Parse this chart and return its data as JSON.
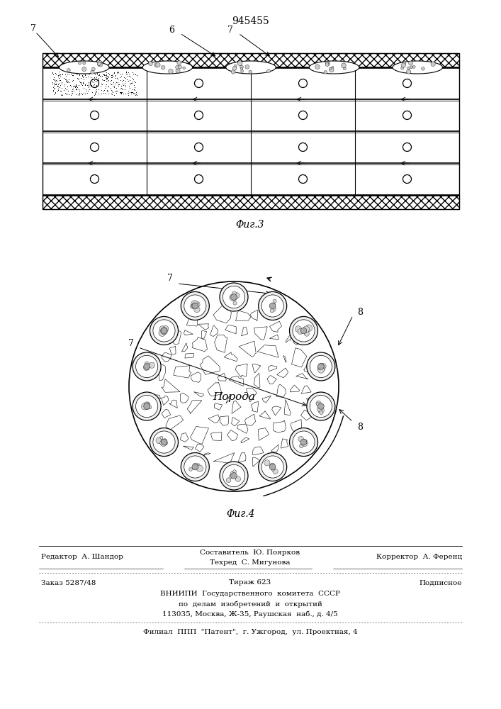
{
  "patent_number": "945455",
  "fig3_label": "Φиг.3",
  "fig4_label": "Φиг.4",
  "poroda_text": "Порода",
  "footer_line1_left": "Редактор  А. Шандор",
  "footer_line1_center": "Составитель  Ю. Поярков",
  "footer_line1_right": "Корректор  А. Ференц",
  "footer_line2_center": "Техред  С. Мигунова",
  "footer_line3_left": "Заказ 5287/48",
  "footer_line3_center": "Тираж 623",
  "footer_line3_right": "Подписное",
  "footer_line4": "ВНИИПИ  Государственного  комитета  СССР",
  "footer_line5": "по  делам  изобретений  и  открытий",
  "footer_line6": "113035, Москва, Ж-35, Раушская  наб., д. 4/5",
  "footer_line7": "Филиал  ППП  \"Патент\",  г. Ужгород,  ул. Проектная, 4"
}
